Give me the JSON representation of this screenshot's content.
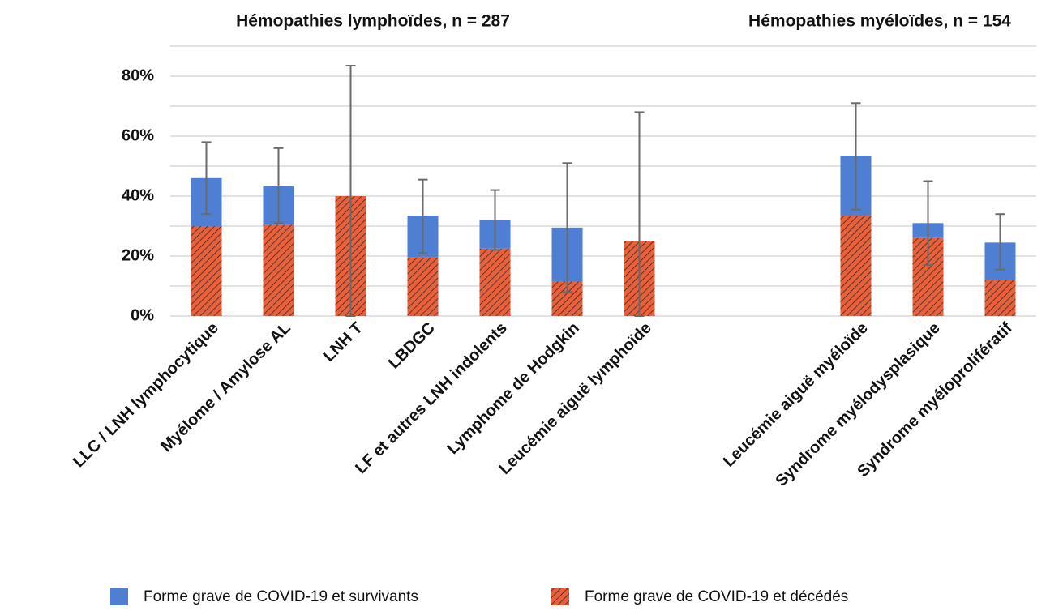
{
  "chart_data": {
    "type": "stacked_bar",
    "group_titles": [
      "Hémopathies lymphoïdes, n = 287",
      "Hémopathies myéloïdes, n = 154"
    ],
    "categories": [
      "LLC / LNH lymphocytique",
      "Myélome / Amylose AL",
      "LNH T",
      "LBDGC",
      "LF et autres LNH indolents",
      "Lymphome de Hodgkin",
      "Leucémie aiguë lymphoïde",
      null,
      null,
      "Leucémie aiguë myéloïde",
      "Syndrome myélodysplasique",
      "Syndrome myéloprolifératif"
    ],
    "series": [
      {
        "name": "Forme grave de COVID-19 et survivants",
        "color": "#4f7fd2",
        "values": [
          16,
          13,
          0,
          14,
          9.5,
          18,
          0,
          null,
          null,
          20,
          5,
          12.5
        ]
      },
      {
        "name": "Forme grave de COVID-19 et décédés",
        "color": "#e8603c",
        "pattern": "hatch",
        "values": [
          30,
          30.5,
          40,
          19.5,
          22.5,
          11.5,
          25,
          null,
          null,
          33.5,
          26,
          12
        ]
      }
    ],
    "error_bars": {
      "low": [
        34,
        31,
        0,
        21,
        22,
        8,
        0,
        null,
        null,
        35.5,
        17,
        15.5
      ],
      "high": [
        58,
        56,
        83.5,
        45.5,
        42,
        51,
        68,
        null,
        null,
        71,
        45,
        34
      ]
    },
    "ylim": [
      0,
      90
    ],
    "yticks": [
      {
        "value": 0,
        "label": "0%"
      },
      {
        "value": 20,
        "label": "20%"
      },
      {
        "value": 40,
        "label": "40%"
      },
      {
        "value": 60,
        "label": "60%"
      },
      {
        "value": 80,
        "label": "80%"
      }
    ],
    "minor_yticks": [
      10,
      30,
      50,
      70,
      90
    ],
    "grid": true,
    "legend": "bottom"
  }
}
